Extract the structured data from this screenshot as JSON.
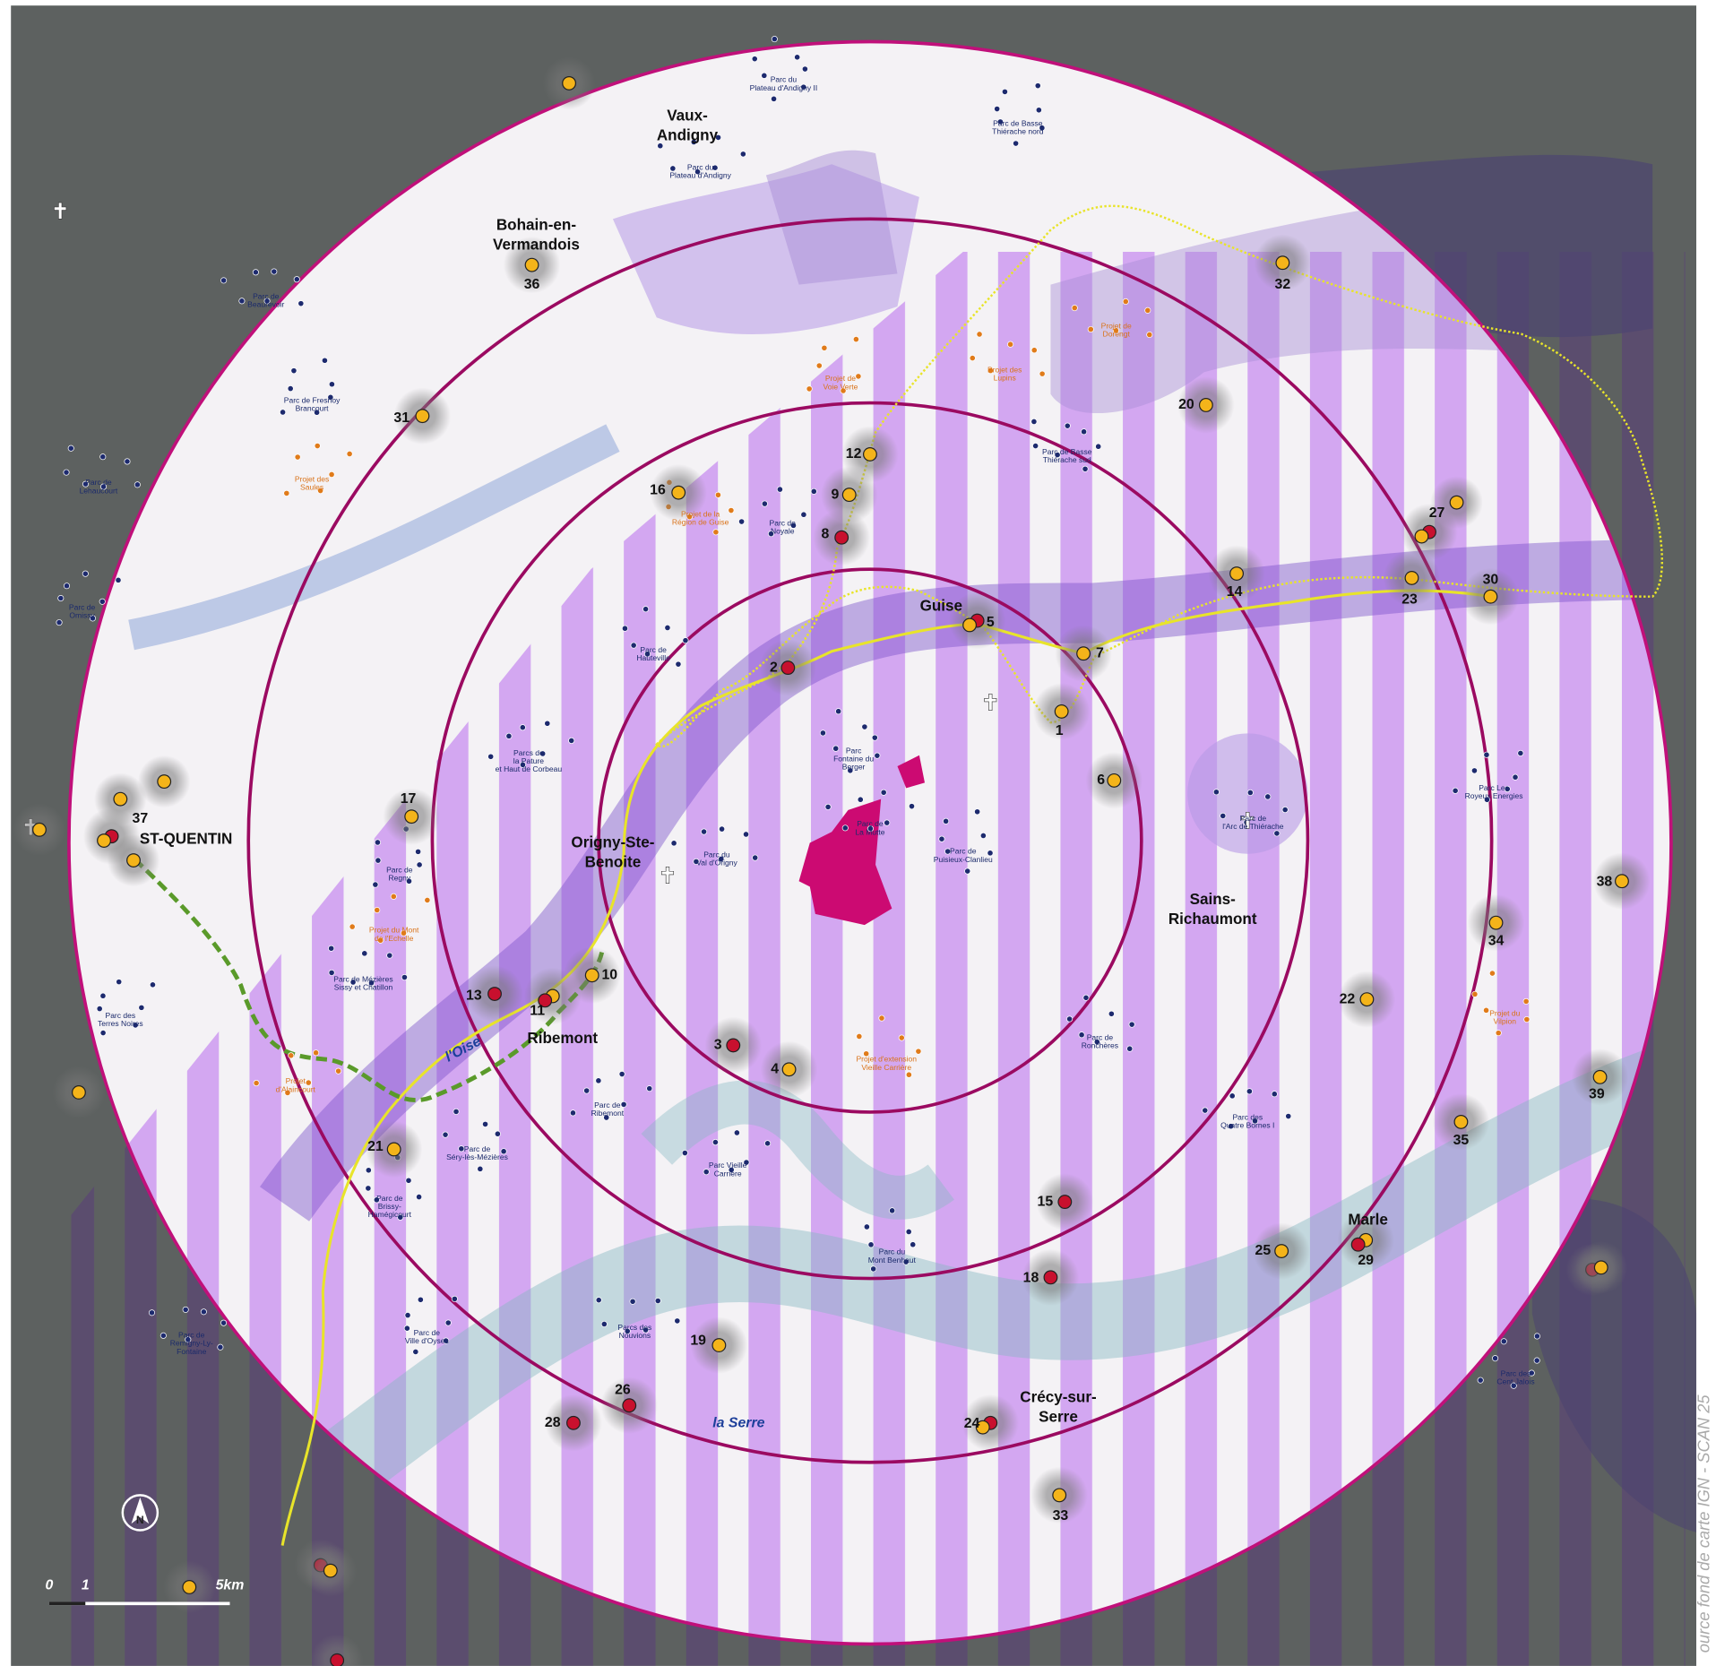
{
  "towns": [
    {
      "lines": [
        "Vaux-",
        "Andigny"
      ]
    },
    {
      "lines": [
        "Bohain-en-",
        "Vermandois"
      ]
    },
    {
      "lines": [
        "ST-QUENTIN"
      ]
    },
    {
      "lines": [
        "Guise"
      ]
    },
    {
      "lines": [
        "Origny-Ste-",
        "Benoite"
      ]
    },
    {
      "lines": [
        "Ribemont"
      ]
    },
    {
      "lines": [
        "Sains-",
        "Richaumont"
      ]
    },
    {
      "lines": [
        "Crécy-sur-",
        "Serre"
      ]
    },
    {
      "lines": [
        "Marle"
      ]
    }
  ],
  "sites": [
    {
      "label": "1",
      "colors": [
        "#f4b41a"
      ]
    },
    {
      "label": "2",
      "colors": [
        "#c8102e"
      ]
    },
    {
      "label": "3",
      "colors": [
        "#c8102e"
      ]
    },
    {
      "label": "4",
      "colors": [
        "#f4b41a"
      ]
    },
    {
      "label": "5",
      "colors": [
        "#c8102e",
        "#f4b41a"
      ]
    },
    {
      "label": "6",
      "colors": [
        "#f4b41a"
      ]
    },
    {
      "label": "7",
      "colors": [
        "#f4b41a"
      ]
    },
    {
      "label": "8",
      "colors": [
        "#c8102e"
      ]
    },
    {
      "label": "9",
      "colors": [
        "#f4b41a"
      ]
    },
    {
      "label": "10",
      "colors": [
        "#f4b41a"
      ]
    },
    {
      "label": "11",
      "colors": [
        "#f4b41a",
        "#c8102e"
      ]
    },
    {
      "label": "12",
      "colors": [
        "#f4b41a"
      ]
    },
    {
      "label": "13",
      "colors": [
        "#c8102e"
      ]
    },
    {
      "label": "14",
      "colors": [
        "#f4b41a"
      ]
    },
    {
      "label": "15",
      "colors": [
        "#c8102e"
      ]
    },
    {
      "label": "16",
      "colors": [
        "#f4b41a"
      ]
    },
    {
      "label": "17",
      "colors": [
        "#f4b41a"
      ]
    },
    {
      "label": "18",
      "colors": [
        "#c8102e"
      ]
    },
    {
      "label": "19",
      "colors": [
        "#f4b41a"
      ]
    },
    {
      "label": "20",
      "colors": [
        "#f4b41a"
      ]
    },
    {
      "label": "21",
      "colors": [
        "#f4b41a"
      ]
    },
    {
      "label": "22",
      "colors": [
        "#f4b41a"
      ]
    },
    {
      "label": "23",
      "colors": [
        "#f4b41a"
      ]
    },
    {
      "label": "24",
      "colors": [
        "#c8102e",
        "#f4b41a"
      ]
    },
    {
      "label": "25",
      "colors": [
        "#f4b41a"
      ]
    },
    {
      "label": "26",
      "colors": [
        "#c8102e"
      ]
    },
    {
      "label": "27",
      "colors": [
        "#c8102e",
        "#f4b41a"
      ]
    },
    {
      "label": "28",
      "colors": [
        "#c8102e"
      ]
    },
    {
      "label": "29",
      "colors": [
        "#f4b41a",
        "#c8102e"
      ]
    },
    {
      "label": "30",
      "colors": [
        "#f4b41a"
      ]
    },
    {
      "label": "31",
      "colors": [
        "#f4b41a"
      ]
    },
    {
      "label": "32",
      "colors": [
        "#f4b41a"
      ]
    },
    {
      "label": "33",
      "colors": [
        "#f4b41a"
      ]
    },
    {
      "label": "34",
      "colors": [
        "#f4b41a"
      ]
    },
    {
      "label": "35",
      "colors": [
        "#f4b41a"
      ]
    },
    {
      "label": "36",
      "colors": [
        "#f4b41a"
      ]
    },
    {
      "label": "37",
      "colors": [
        "#c8102e",
        "#f4b41a"
      ]
    },
    {
      "label": "38",
      "colors": [
        "#f4b41a"
      ]
    },
    {
      "label": "39",
      "colors": [
        "#f4b41a"
      ]
    }
  ],
  "parks": [
    {
      "lines": [
        "Parc du",
        "Plateau d'Andigny II"
      ]
    },
    {
      "lines": [
        "Parc du",
        "Plateau d'Andigny"
      ]
    },
    {
      "lines": [
        "Parc de Basse",
        "Thiérache nord"
      ]
    },
    {
      "lines": [
        "Parc de",
        "Beaurevoir"
      ]
    },
    {
      "lines": [
        "Parc de Fresnoy",
        "Brancourt"
      ]
    },
    {
      "lines": [
        "Parc de",
        "Lehaucourt"
      ]
    },
    {
      "lines": [
        "Parc de",
        "Omissy"
      ]
    },
    {
      "lines": [
        "Parc de Basse",
        "Thiérache sud"
      ]
    },
    {
      "lines": [
        "Parc de",
        "Noyale"
      ]
    },
    {
      "lines": [
        "Parc de",
        "Hauteville"
      ]
    },
    {
      "lines": [
        "Parcs de",
        "la Pature",
        "et Haut de Corbeau"
      ]
    },
    {
      "lines": [
        "Parc",
        "Fontaine du",
        "Berger"
      ]
    },
    {
      "lines": [
        "Parc de",
        "La Mutte"
      ]
    },
    {
      "lines": [
        "Parc de",
        "Puisieux-Clanlieu"
      ]
    },
    {
      "lines": [
        "Parc du",
        "Val d'Origny"
      ]
    },
    {
      "lines": [
        "Parc de",
        "Regny"
      ]
    },
    {
      "lines": [
        "Parc de Mézières",
        "Sissy et Chatillon"
      ]
    },
    {
      "lines": [
        "Parc des",
        "Terres Noires"
      ]
    },
    {
      "lines": [
        "Parc de",
        "l'Arc de Thiérache"
      ]
    },
    {
      "lines": [
        "Parc Les",
        "Royeux Energies"
      ]
    },
    {
      "lines": [
        "Parc de",
        "Ronchères"
      ]
    },
    {
      "lines": [
        "Parc de",
        "Ribemont"
      ]
    },
    {
      "lines": [
        "Parc de",
        "Séry-lès-Mézières"
      ]
    },
    {
      "lines": [
        "Parc Vieille",
        "Carrière"
      ]
    },
    {
      "lines": [
        "Parc de",
        "Brissy-",
        "Hamégicourt"
      ]
    },
    {
      "lines": [
        "Parc des",
        "Quatre Bornes I"
      ]
    },
    {
      "lines": [
        "Parc du",
        "Mont Benhaut"
      ]
    },
    {
      "lines": [
        "Parcs des",
        "Nouvions"
      ]
    },
    {
      "lines": [
        "Parc de",
        "Ville d'Oyses"
      ]
    },
    {
      "lines": [
        "Parc de",
        "Remigny-Ly-",
        "Fontaine"
      ]
    },
    {
      "lines": [
        "Parc des",
        "Cent Jalois"
      ]
    }
  ],
  "projects": [
    {
      "lines": [
        "Projet de",
        "Dorengt"
      ]
    },
    {
      "lines": [
        "Projet de",
        "Voie Verte"
      ]
    },
    {
      "lines": [
        "Projet des",
        "Lupins"
      ]
    },
    {
      "lines": [
        "Projet des",
        "Saules"
      ]
    },
    {
      "lines": [
        "Projet de la",
        "Région de Guise"
      ]
    },
    {
      "lines": [
        "Projet du Mont",
        "de l'Echelle"
      ]
    },
    {
      "lines": [
        "Projet d'extension",
        "Vieille Carrière"
      ]
    },
    {
      "lines": [
        "Projet",
        "d'Alaincourt"
      ]
    },
    {
      "lines": [
        "Projet du",
        "Vilpion"
      ]
    }
  ],
  "rivers": [
    "l'Oise",
    "la Serre"
  ],
  "north": "N",
  "scale": [
    "0",
    "1",
    "5km"
  ],
  "source": "ource fond de carte IGN - SCAN 25"
}
